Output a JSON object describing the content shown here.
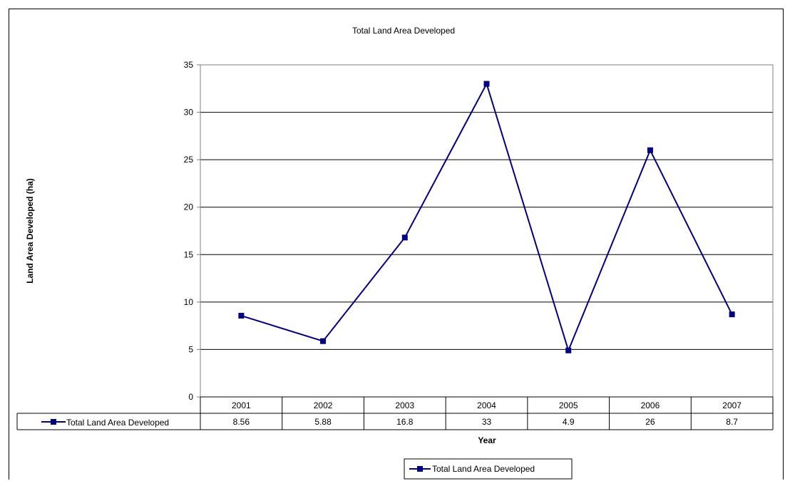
{
  "chart_data": {
    "type": "line",
    "title": "Total Land Area Developed",
    "xlabel": "Year",
    "ylabel": "Land Area Developed (ha)",
    "categories": [
      "2001",
      "2002",
      "2003",
      "2004",
      "2005",
      "2006",
      "2007"
    ],
    "series": [
      {
        "name": "Total Land Area Developed",
        "values": [
          8.56,
          5.88,
          16.8,
          33,
          4.9,
          26,
          8.7
        ],
        "value_labels": [
          "8.56",
          "5.88",
          "16.8",
          "33",
          "4.9",
          "26",
          "8.7"
        ],
        "color": "#000080"
      }
    ],
    "ylim": [
      0,
      35
    ],
    "yticks": [
      0,
      5,
      10,
      15,
      20,
      25,
      30,
      35
    ],
    "grid": "horizontal",
    "legend": "bottom-center",
    "data_table": true
  }
}
